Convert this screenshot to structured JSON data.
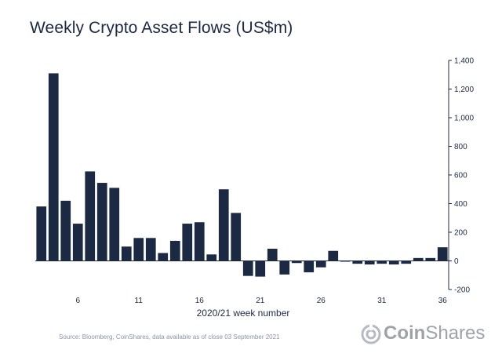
{
  "chart_data": {
    "type": "bar",
    "title": "Weekly Crypto Asset Flows (US$m)",
    "xlabel": "2020/21 week number",
    "ylabel": "",
    "ylim": [
      -200,
      1400
    ],
    "yticks": [
      -200,
      0,
      200,
      400,
      600,
      800,
      1000,
      1200,
      1400
    ],
    "ytick_labels": [
      "-200",
      "0",
      "200",
      "400",
      "600",
      "800",
      "1,000",
      "1,200",
      "1,400"
    ],
    "xtick_labels": [
      {
        "week": 6,
        "label": "6"
      },
      {
        "week": 11,
        "label": "11"
      },
      {
        "week": 16,
        "label": "16"
      },
      {
        "week": 21,
        "label": "21"
      },
      {
        "week": 26,
        "label": "26"
      },
      {
        "week": 31,
        "label": "31"
      },
      {
        "week": 36,
        "label": "36"
      }
    ],
    "categories": [
      3,
      4,
      5,
      6,
      7,
      8,
      9,
      10,
      11,
      12,
      13,
      14,
      15,
      16,
      17,
      18,
      19,
      20,
      21,
      22,
      23,
      24,
      25,
      26,
      27,
      28,
      29,
      30,
      31,
      32,
      33,
      34,
      35,
      36
    ],
    "values": [
      380,
      1310,
      420,
      260,
      625,
      545,
      510,
      100,
      160,
      160,
      55,
      140,
      260,
      270,
      45,
      500,
      335,
      -105,
      -110,
      85,
      -95,
      -15,
      -80,
      -45,
      70,
      -5,
      -20,
      -25,
      -20,
      -25,
      -20,
      20,
      20,
      95
    ],
    "bar_color": "#1c2942"
  },
  "source": "Source: Bloomberg, CoinShares, data available as of close 03 September 2021",
  "logo": {
    "prefix": "Coin",
    "suffix": "Shares",
    "color": "#9ea3aa"
  }
}
